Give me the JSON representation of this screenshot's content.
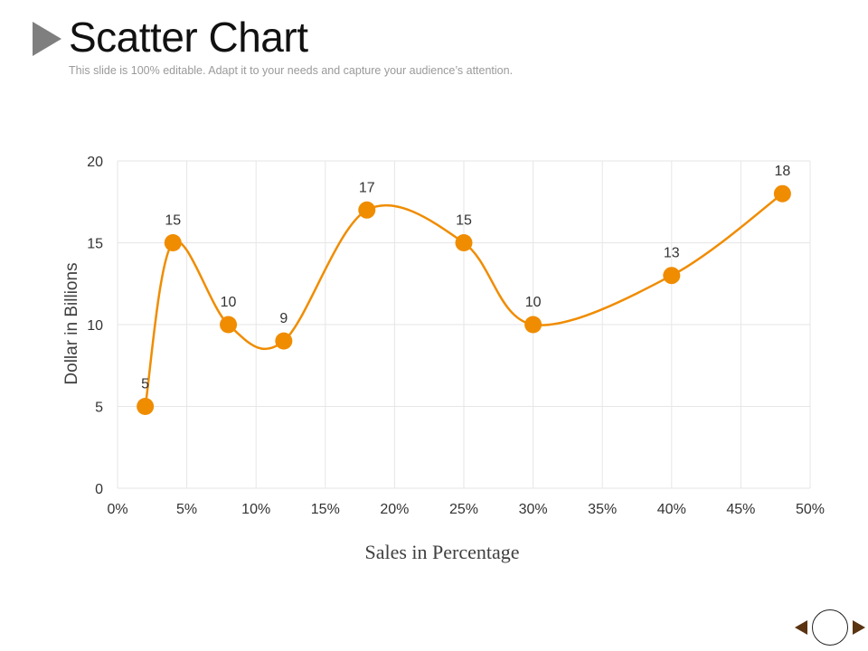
{
  "slide": {
    "title": "Scatter Chart",
    "subtitle": "This slide is 100% editable. Adapt it to your needs and capture your audience’s attention."
  },
  "chart_data": {
    "type": "scatter",
    "xlabel": "Sales in Percentage",
    "ylabel": "Dollar in Billions",
    "xlim": [
      0,
      50
    ],
    "ylim": [
      0,
      20
    ],
    "x_ticks": [
      0,
      5,
      10,
      15,
      20,
      25,
      30,
      35,
      40,
      45,
      50
    ],
    "x_tick_labels": [
      "0%",
      "5%",
      "10%",
      "15%",
      "20%",
      "25%",
      "30%",
      "35%",
      "40%",
      "45%",
      "50%"
    ],
    "y_ticks": [
      0,
      5,
      10,
      15,
      20
    ],
    "y_tick_labels": [
      "0",
      "5",
      "10",
      "15",
      "20"
    ],
    "grid": true,
    "smooth_line": true,
    "series": [
      {
        "color": "#f08c00",
        "points": [
          {
            "x": 2,
            "y": 5
          },
          {
            "x": 4,
            "y": 15
          },
          {
            "x": 8,
            "y": 10
          },
          {
            "x": 12,
            "y": 9
          },
          {
            "x": 18,
            "y": 17
          },
          {
            "x": 25,
            "y": 15
          },
          {
            "x": 30,
            "y": 10
          },
          {
            "x": 40,
            "y": 13
          },
          {
            "x": 48,
            "y": 18
          }
        ],
        "data_labels": [
          "5",
          "15",
          "10",
          "9",
          "17",
          "15",
          "10",
          "13",
          "18"
        ]
      }
    ]
  },
  "navigation": {
    "prev_icon": "triangle-left-icon",
    "home_icon": "circle-icon",
    "next_icon": "triangle-right-icon",
    "arrow_color": "#5a3310"
  }
}
